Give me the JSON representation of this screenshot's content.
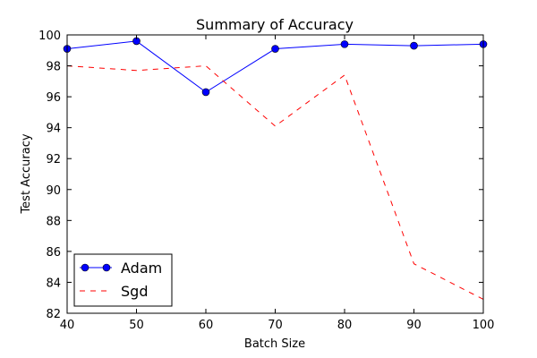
{
  "chart_data": {
    "type": "line",
    "title": "Summary of Accuracy",
    "xlabel": "Batch Size",
    "ylabel": "Test Accuracy",
    "x": [
      40,
      50,
      60,
      70,
      80,
      90,
      100
    ],
    "xlim": [
      40,
      100
    ],
    "ylim": [
      82,
      100
    ],
    "xticks": [
      40,
      50,
      60,
      70,
      80,
      90,
      100
    ],
    "yticks": [
      82,
      84,
      86,
      88,
      90,
      92,
      94,
      96,
      98,
      100
    ],
    "grid": false,
    "legend_position": "lower-left",
    "series": [
      {
        "name": "Adam",
        "values": [
          99.1,
          99.6,
          96.3,
          99.1,
          99.4,
          99.3,
          99.4
        ],
        "color": "#0000ff",
        "style": "solid-marker"
      },
      {
        "name": "Sgd",
        "values": [
          98.0,
          97.7,
          98.0,
          94.1,
          97.4,
          85.2,
          82.9
        ],
        "color": "#ff0000",
        "style": "dashed"
      }
    ]
  }
}
